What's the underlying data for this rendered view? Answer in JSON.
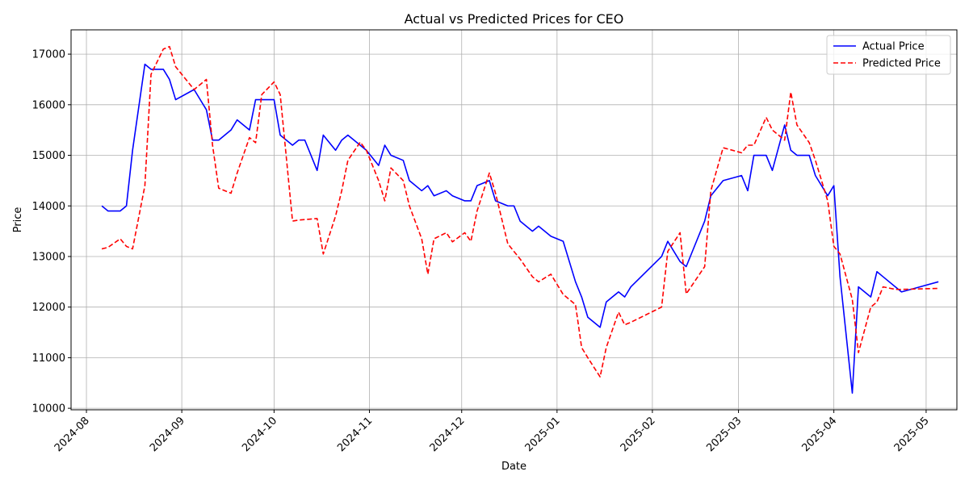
{
  "colors": {
    "actual": "#0000ff",
    "predicted": "#ff0000",
    "grid": "#b0b0b0",
    "axes": "#000000",
    "background": "#ffffff"
  },
  "chart_data": {
    "type": "line",
    "title": "Actual vs Predicted Prices for CEO",
    "xlabel": "Date",
    "ylabel": "Price",
    "grid": true,
    "legend_position": "top-right",
    "xlim": [
      "2024-07-27",
      "2025-05-11"
    ],
    "ylim": [
      9970,
      17480
    ],
    "x_ticks": [
      "2024-08-01",
      "2024-09-01",
      "2024-10-01",
      "2024-11-01",
      "2024-12-01",
      "2025-01-01",
      "2025-02-01",
      "2025-03-01",
      "2025-04-01",
      "2025-05-01"
    ],
    "x_tick_labels": [
      "2024-08",
      "2024-09",
      "2024-10",
      "2024-11",
      "2024-12",
      "2025-01",
      "2025-02",
      "2025-03",
      "2025-04",
      "2025-05"
    ],
    "y_ticks": [
      10000,
      11000,
      12000,
      13000,
      14000,
      15000,
      16000,
      17000
    ],
    "y_tick_labels": [
      "10000",
      "11000",
      "12000",
      "13000",
      "14000",
      "15000",
      "16000",
      "17000"
    ],
    "series": [
      {
        "name": "Actual Price",
        "style": "solid",
        "x": [
          "2024-08-06",
          "2024-08-08",
          "2024-08-12",
          "2024-08-14",
          "2024-08-16",
          "2024-08-20",
          "2024-08-22",
          "2024-08-26",
          "2024-08-28",
          "2024-08-30",
          "2024-09-05",
          "2024-09-09",
          "2024-09-11",
          "2024-09-13",
          "2024-09-17",
          "2024-09-19",
          "2024-09-23",
          "2024-09-25",
          "2024-09-27",
          "2024-10-01",
          "2024-10-03",
          "2024-10-07",
          "2024-10-09",
          "2024-10-11",
          "2024-10-15",
          "2024-10-17",
          "2024-10-21",
          "2024-10-23",
          "2024-10-25",
          "2024-10-29",
          "2024-10-31",
          "2024-11-04",
          "2024-11-06",
          "2024-11-08",
          "2024-11-12",
          "2024-11-14",
          "2024-11-18",
          "2024-11-20",
          "2024-11-22",
          "2024-11-26",
          "2024-11-28",
          "2024-12-02",
          "2024-12-04",
          "2024-12-06",
          "2024-12-10",
          "2024-12-12",
          "2024-12-16",
          "2024-12-18",
          "2024-12-20",
          "2024-12-24",
          "2024-12-26",
          "2024-12-30",
          "2025-01-03",
          "2025-01-07",
          "2025-01-09",
          "2025-01-11",
          "2025-01-15",
          "2025-01-17",
          "2025-01-21",
          "2025-01-23",
          "2025-01-25",
          "2025-02-04",
          "2025-02-06",
          "2025-02-10",
          "2025-02-12",
          "2025-02-18",
          "2025-02-20",
          "2025-02-24",
          "2025-03-02",
          "2025-03-04",
          "2025-03-06",
          "2025-03-10",
          "2025-03-12",
          "2025-03-16",
          "2025-03-18",
          "2025-03-20",
          "2025-03-24",
          "2025-03-26",
          "2025-03-30",
          "2025-04-01",
          "2025-04-03",
          "2025-04-07",
          "2025-04-09",
          "2025-04-13",
          "2025-04-15",
          "2025-04-17",
          "2025-04-21",
          "2025-04-23",
          "2025-05-05"
        ],
        "y": [
          14000,
          13900,
          13900,
          14000,
          15100,
          16800,
          16700,
          16700,
          16500,
          16100,
          16300,
          15900,
          15300,
          15300,
          15500,
          15700,
          15500,
          16100,
          16100,
          16100,
          15400,
          15200,
          15300,
          15300,
          14700,
          15400,
          15100,
          15300,
          15400,
          15200,
          15100,
          14800,
          15200,
          15000,
          14900,
          14500,
          14300,
          14400,
          14200,
          14300,
          14200,
          14100,
          14100,
          14400,
          14500,
          14100,
          14000,
          14000,
          13700,
          13500,
          13600,
          13400,
          13300,
          12500,
          12200,
          11800,
          11600,
          12100,
          12300,
          12200,
          12400,
          13000,
          13300,
          12900,
          12800,
          13700,
          14200,
          14500,
          14600,
          14300,
          15000,
          15000,
          14700,
          15600,
          15100,
          15000,
          15000,
          14600,
          14200,
          14400,
          12600,
          10300,
          12400,
          12200,
          12700,
          12600,
          12400,
          12300,
          12500
        ]
      },
      {
        "name": "Predicted Price",
        "style": "dashed",
        "x": [
          "2024-08-06",
          "2024-08-08",
          "2024-08-12",
          "2024-08-14",
          "2024-08-16",
          "2024-08-20",
          "2024-08-22",
          "2024-08-26",
          "2024-08-28",
          "2024-08-30",
          "2024-09-05",
          "2024-09-09",
          "2024-09-11",
          "2024-09-13",
          "2024-09-17",
          "2024-09-19",
          "2024-09-23",
          "2024-09-25",
          "2024-09-27",
          "2024-10-01",
          "2024-10-03",
          "2024-10-07",
          "2024-10-09",
          "2024-10-11",
          "2024-10-15",
          "2024-10-17",
          "2024-10-21",
          "2024-10-23",
          "2024-10-25",
          "2024-10-29",
          "2024-10-31",
          "2024-11-04",
          "2024-11-06",
          "2024-11-08",
          "2024-11-12",
          "2024-11-14",
          "2024-11-18",
          "2024-11-20",
          "2024-11-22",
          "2024-11-26",
          "2024-11-28",
          "2024-12-02",
          "2024-12-04",
          "2024-12-06",
          "2024-12-10",
          "2024-12-12",
          "2024-12-16",
          "2024-12-18",
          "2024-12-20",
          "2024-12-24",
          "2024-12-26",
          "2024-12-30",
          "2025-01-03",
          "2025-01-07",
          "2025-01-09",
          "2025-01-11",
          "2025-01-15",
          "2025-01-17",
          "2025-01-21",
          "2025-01-23",
          "2025-01-25",
          "2025-02-04",
          "2025-02-06",
          "2025-02-10",
          "2025-02-12",
          "2025-02-18",
          "2025-02-20",
          "2025-02-24",
          "2025-03-02",
          "2025-03-04",
          "2025-03-06",
          "2025-03-10",
          "2025-03-12",
          "2025-03-16",
          "2025-03-18",
          "2025-03-20",
          "2025-03-24",
          "2025-03-26",
          "2025-03-30",
          "2025-04-01",
          "2025-04-03",
          "2025-04-07",
          "2025-04-09",
          "2025-04-13",
          "2025-04-15",
          "2025-04-17",
          "2025-04-21",
          "2025-04-23",
          "2025-05-05"
        ],
        "y": [
          13150,
          13180,
          13350,
          13200,
          13150,
          14400,
          16600,
          17100,
          17150,
          16750,
          16300,
          16500,
          15200,
          14350,
          14250,
          14650,
          15350,
          15250,
          16200,
          16450,
          16200,
          13700,
          13720,
          13730,
          13750,
          13050,
          13800,
          14300,
          14900,
          15260,
          15100,
          14500,
          14100,
          14750,
          14500,
          14000,
          13350,
          12650,
          13350,
          13470,
          13290,
          13470,
          13300,
          13900,
          14650,
          14250,
          13250,
          13100,
          12950,
          12600,
          12500,
          12650,
          12250,
          12050,
          11200,
          11000,
          10620,
          11200,
          11900,
          11650,
          11700,
          12000,
          13100,
          13470,
          12260,
          12800,
          14300,
          15150,
          15050,
          15200,
          15200,
          15750,
          15500,
          15300,
          16250,
          15600,
          15250,
          14900,
          14100,
          13200,
          13050,
          12150,
          11100,
          12000,
          12100,
          12400,
          12350,
          12350,
          12370
        ]
      }
    ]
  }
}
